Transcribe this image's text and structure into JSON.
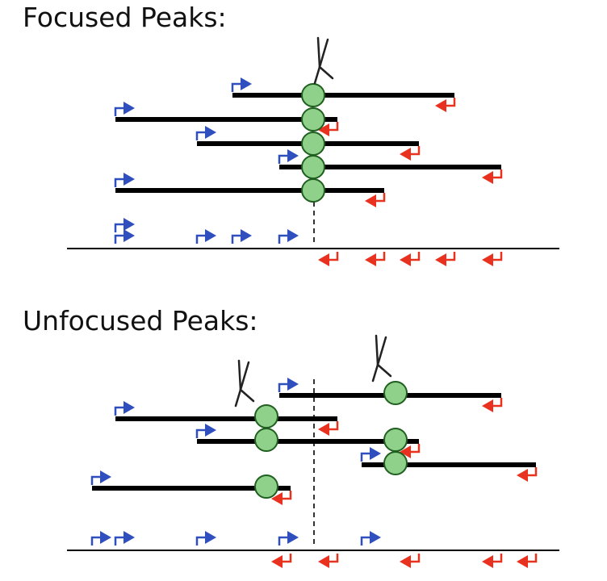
{
  "panels": {
    "focused": {
      "title": "Focused Peaks:"
    },
    "unfocused": {
      "title": "Unfocused Peaks:"
    }
  },
  "colors": {
    "fragment": "#000000",
    "nucleosome_fill": "#8fd18b",
    "nucleosome_stroke": "#1f5f1f",
    "forward_arrow": "#2f4fbf",
    "reverse_arrow": "#e8321f",
    "genome_line": "#000000",
    "peak_center_line": "#333333"
  },
  "icons": {
    "antibody": "antibody-icon",
    "forward": "forward-arrow-icon",
    "reverse": "reverse-arrow-icon",
    "nucleosome": "nucleosome-icon"
  }
}
